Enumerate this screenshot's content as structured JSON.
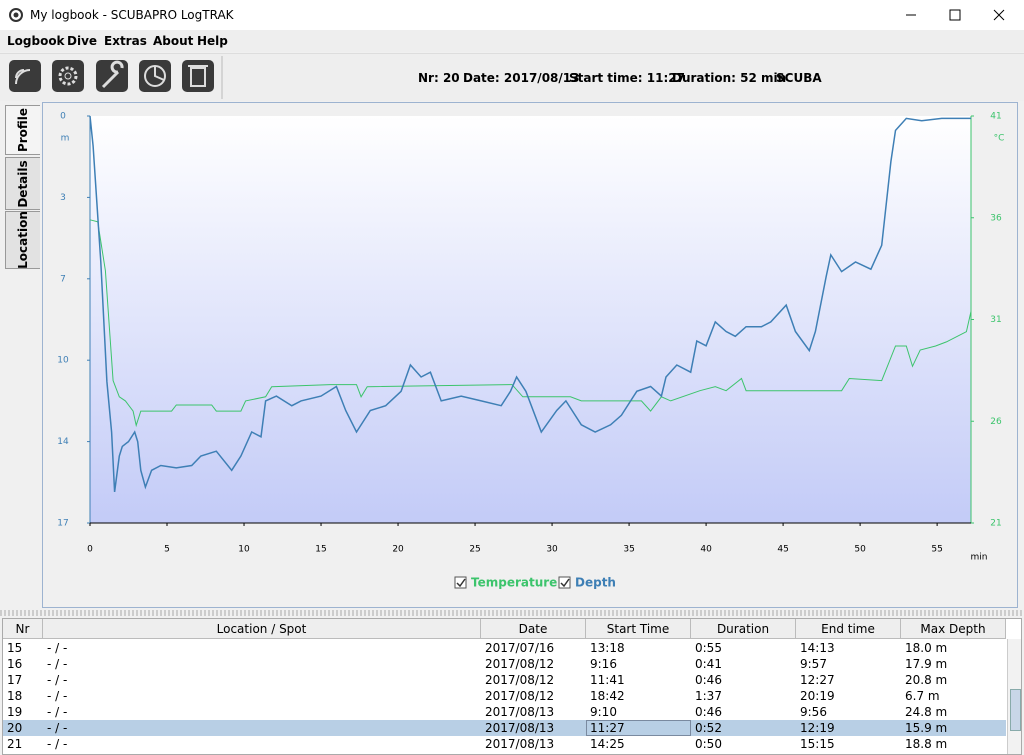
{
  "window": {
    "title": "My logbook - SCUBAPRO LogTRAK"
  },
  "menu": [
    "Logbook",
    "Dive",
    "Extras",
    "About",
    "Help"
  ],
  "dive_info": [
    "Nr: 20",
    "Date: 2017/08/13",
    "Start time: 11:27",
    "Duration: 52 min",
    "SCUBA"
  ],
  "tabs": [
    "Profile",
    "Details",
    "Location"
  ],
  "chart_data": {
    "type": "line",
    "y_label": "m",
    "y2_label": "°C",
    "x_label": "min",
    "xlim": [
      0,
      57.2
    ],
    "xticks": [
      0,
      5,
      10,
      15,
      20,
      25,
      30,
      35,
      40,
      45,
      50,
      55
    ],
    "ylim": [
      17,
      0
    ],
    "yticks": [
      0,
      {
        "value": 3.4,
        "label": "3"
      },
      {
        "value": 6.8,
        "label": "7"
      },
      {
        "value": 10.2,
        "label": "10"
      },
      {
        "value": 13.6,
        "label": "14"
      },
      17
    ],
    "y2lim": [
      21,
      41
    ],
    "y2ticks": [
      21,
      26,
      31,
      36,
      41
    ],
    "series": [
      {
        "name": "Temperature",
        "color": "#3cc46c",
        "axis": "y2",
        "x": [
          0,
          0.5,
          1.0,
          1.5,
          1.9,
          2.3,
          2.8,
          3.0,
          3.3,
          5.3,
          5.6,
          7.9,
          8.2,
          9.8,
          10.1,
          11.4,
          11.8,
          15.6,
          17.3,
          17.6,
          18.0,
          27.4,
          28.1,
          31.2,
          31.9,
          35.8,
          36.4,
          37.1,
          37.7,
          39.6,
          40.6,
          41.3,
          42.3,
          42.6,
          48.8,
          49.3,
          51.4,
          52.3,
          53.0,
          53.4,
          53.9,
          54.9,
          55.6,
          56.9,
          57.2
        ],
        "values": [
          35.9,
          35.8,
          33.4,
          28,
          27.2,
          27,
          26.5,
          25.8,
          26.5,
          26.5,
          26.8,
          26.8,
          26.5,
          26.5,
          27,
          27.2,
          27.7,
          27.8,
          27.8,
          27.2,
          27.7,
          27.8,
          27.2,
          27.2,
          27,
          27,
          26.5,
          27.2,
          27,
          27.5,
          27.7,
          27.5,
          28.1,
          27.5,
          27.5,
          28.1,
          28,
          29.7,
          29.7,
          28.7,
          29.5,
          29.7,
          29.9,
          30.4,
          31.4
        ]
      },
      {
        "name": "Depth",
        "color": "#3e7fb5",
        "x": [
          0,
          0.2,
          0.7,
          1.1,
          1.4,
          1.6,
          1.9,
          2.1,
          2.5,
          2.9,
          3.1,
          3.3,
          3.6,
          4.0,
          4.6,
          5.6,
          6.6,
          7.2,
          8.2,
          9.2,
          9.8,
          10.5,
          11.1,
          11.4,
          12.1,
          13.1,
          13.7,
          15.0,
          16.0,
          16.6,
          17.3,
          18.2,
          19.2,
          20.2,
          20.8,
          21.5,
          22.1,
          22.8,
          24.1,
          25.4,
          26.7,
          27.3,
          27.7,
          28.3,
          29.3,
          30.3,
          30.9,
          31.9,
          32.8,
          33.8,
          34.5,
          35.5,
          36.4,
          37.1,
          37.4,
          38.1,
          39.0,
          39.4,
          40.0,
          40.6,
          41.3,
          41.9,
          42.6,
          43.6,
          44.2,
          45.2,
          45.8,
          46.7,
          47.1,
          47.8,
          48.1,
          48.8,
          49.7,
          50.7,
          51.4,
          52.0,
          52.3,
          53.0,
          54.0,
          55.3,
          57.2
        ],
        "values": [
          0,
          1.25,
          6.1,
          11.1,
          13.2,
          15.7,
          14.2,
          13.8,
          13.6,
          13.2,
          13.6,
          14.8,
          15.5,
          14.8,
          14.6,
          14.7,
          14.6,
          14.2,
          14.0,
          14.8,
          14.2,
          13.2,
          13.4,
          11.9,
          11.7,
          12.1,
          11.9,
          11.7,
          11.3,
          12.3,
          13.2,
          12.3,
          12.1,
          11.5,
          10.4,
          10.9,
          10.7,
          11.9,
          11.7,
          11.9,
          12.1,
          11.5,
          10.9,
          11.5,
          13.2,
          12.3,
          11.9,
          12.9,
          13.2,
          12.9,
          12.5,
          11.5,
          11.3,
          11.7,
          10.9,
          10.4,
          10.7,
          9.4,
          9.6,
          8.6,
          9.0,
          9.2,
          8.8,
          8.8,
          8.6,
          7.9,
          9.0,
          9.8,
          9.0,
          6.7,
          5.8,
          6.5,
          6.1,
          6.4,
          5.4,
          1.9,
          0.6,
          0.1,
          0.2,
          0.1,
          0.1
        ]
      }
    ]
  },
  "table": {
    "columns": [
      "Nr",
      "Location / Spot",
      "Date",
      "Start Time",
      "Duration",
      "End time",
      "Max Depth"
    ],
    "rows": [
      [
        "15",
        "- / -",
        "2017/07/16",
        "13:18",
        "0:55",
        "14:13",
        "18.0 m"
      ],
      [
        "16",
        "- / -",
        "2017/08/12",
        "9:16",
        "0:41",
        "9:57",
        "17.9 m"
      ],
      [
        "17",
        "- / -",
        "2017/08/12",
        "11:41",
        "0:46",
        "12:27",
        "20.8 m"
      ],
      [
        "18",
        "- / -",
        "2017/08/12",
        "18:42",
        "1:37",
        "20:19",
        "6.7 m"
      ],
      [
        "19",
        "- / -",
        "2017/08/13",
        "9:10",
        "0:46",
        "9:56",
        "24.8 m"
      ],
      [
        "20",
        "- / -",
        "2017/08/13",
        "11:27",
        "0:52",
        "12:19",
        "15.9 m"
      ],
      [
        "21",
        "- / -",
        "2017/08/13",
        "14:25",
        "0:50",
        "15:15",
        "18.8 m"
      ]
    ]
  }
}
